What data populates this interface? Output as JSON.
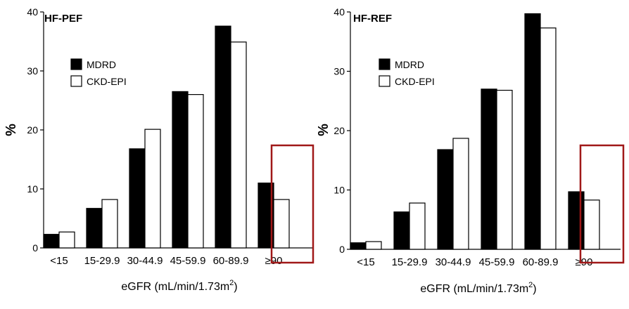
{
  "colors": {
    "mdrd": "#000000",
    "ckd": "#ffffff",
    "highlight": "#a01818",
    "axis": "#000000"
  },
  "chart_data": [
    {
      "type": "bar",
      "title": "HF-PEF",
      "ylabel": "%",
      "xlabel": "eGFR (mL/min/1.73m",
      "xlabel_sup": "2",
      "xlabel_close": ")",
      "ylim": [
        0,
        40
      ],
      "yticks": [
        0,
        10,
        20,
        30,
        40
      ],
      "categories": [
        "<15",
        "15-29.9",
        "30-44.9",
        "45-59.9",
        "60-89.9",
        "≥90"
      ],
      "series": [
        {
          "name": "MDRD",
          "values": [
            2.3,
            6.7,
            16.8,
            26.5,
            37.6,
            11.0
          ]
        },
        {
          "name": "CKD-EPI",
          "values": [
            2.7,
            8.2,
            20.1,
            26.0,
            34.9,
            8.2
          ]
        }
      ],
      "highlight_category": "≥90",
      "legend": "top-left"
    },
    {
      "type": "bar",
      "title": "HF-REF",
      "ylabel": "%",
      "xlabel": "eGFR (mL/min/1.73m",
      "xlabel_sup": "2",
      "xlabel_close": ")",
      "ylim": [
        0,
        40
      ],
      "yticks": [
        0,
        10,
        20,
        30,
        40
      ],
      "categories": [
        "<15",
        "15-29.9",
        "30-44.9",
        "45-59.9",
        "60-89.9",
        "≥90"
      ],
      "series": [
        {
          "name": "MDRD",
          "values": [
            1.1,
            6.3,
            16.8,
            27.0,
            39.7,
            9.7
          ]
        },
        {
          "name": "CKD-EPI",
          "values": [
            1.3,
            7.8,
            18.7,
            26.8,
            37.3,
            8.3
          ]
        }
      ],
      "highlight_category": "≥90",
      "legend": "top-left"
    }
  ]
}
